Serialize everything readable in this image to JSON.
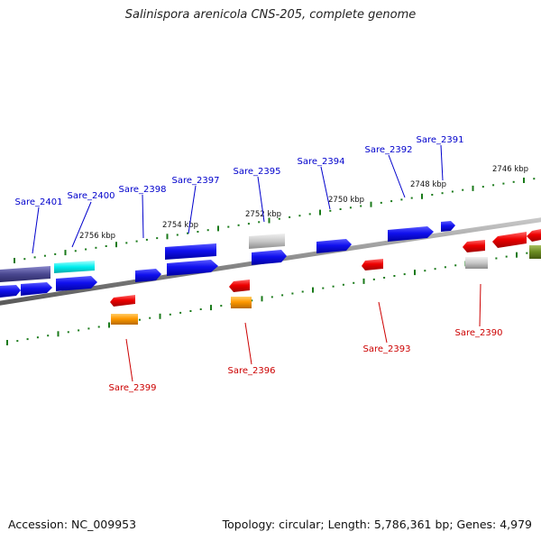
{
  "title": "Salinispora arenicola CNS-205, complete genome",
  "footer": {
    "accession": "Accession: NC_009953",
    "summary": "Topology: circular; Length: 5,786,361 bp; Genes: 4,979"
  },
  "ruler_labels": [
    "2756 kbp",
    "2754 kbp",
    "2752 kbp",
    "2750 kbp",
    "2748 kbp",
    "2746 kbp"
  ],
  "gene_labels": {
    "forward": [
      "Sare_2401",
      "Sare_2400",
      "Sare_2398",
      "Sare_2397",
      "Sare_2395",
      "Sare_2394",
      "Sare_2392",
      "Sare_2391"
    ],
    "reverse": [
      "Sare_2399",
      "Sare_2396",
      "Sare_2393",
      "Sare_2390"
    ]
  },
  "colors": {
    "forward_label": "#0000cc",
    "reverse_label": "#cc0000",
    "tick": "#1a7a1a",
    "backbone": "#888888"
  }
}
